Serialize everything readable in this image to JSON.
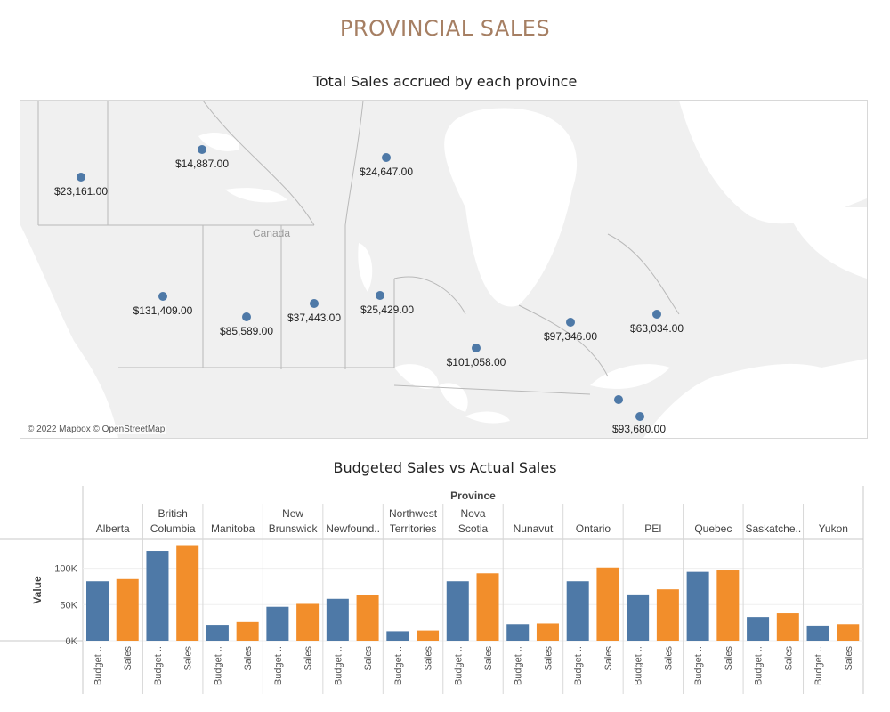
{
  "title": "PROVINCIAL SALES",
  "colors": {
    "title": "#a67f63",
    "budget": "#4e79a7",
    "sales": "#f28e2b",
    "map_dot": "#4e79a7"
  },
  "map": {
    "title": "Total Sales accrued by each province",
    "region_label": "Canada",
    "attribution": "© 2022 Mapbox © OpenStreetMap",
    "points": [
      {
        "label": "$23,161.00"
      },
      {
        "label": "$14,887.00"
      },
      {
        "label": "$24,647.00"
      },
      {
        "label": "$131,409.00"
      },
      {
        "label": "$85,589.00"
      },
      {
        "label": "$37,443.00"
      },
      {
        "label": "$25,429.00"
      },
      {
        "label": "$97,346.00"
      },
      {
        "label": "$63,034.00"
      },
      {
        "label": "$101,058.00"
      },
      {
        "label": "$93,680.00"
      }
    ]
  },
  "chart_data": {
    "type": "bar",
    "title": "Budgeted Sales vs Actual Sales",
    "column_header": "Province",
    "ylabel": "Value",
    "ylim": [
      0,
      140000
    ],
    "yticks": [
      0,
      50000,
      100000
    ],
    "ytick_labels": [
      "0K",
      "50K",
      "100K"
    ],
    "categories": [
      {
        "lines": [
          "Alberta"
        ]
      },
      {
        "lines": [
          "British",
          "Columbia"
        ]
      },
      {
        "lines": [
          "Manitoba"
        ]
      },
      {
        "lines": [
          "New",
          "Brunswick"
        ]
      },
      {
        "lines": [
          "Newfound.."
        ]
      },
      {
        "lines": [
          "Northwest",
          "Territories"
        ]
      },
      {
        "lines": [
          "Nova",
          "Scotia"
        ]
      },
      {
        "lines": [
          "Nunavut"
        ]
      },
      {
        "lines": [
          "Ontario"
        ]
      },
      {
        "lines": [
          "PEI"
        ]
      },
      {
        "lines": [
          "Quebec"
        ]
      },
      {
        "lines": [
          "Saskatche.."
        ]
      },
      {
        "lines": [
          "Yukon"
        ]
      }
    ],
    "bar_labels": [
      "Budget ..",
      "Sales"
    ],
    "series": [
      {
        "name": "Budget ..",
        "color": "#4e79a7",
        "values": [
          82000,
          124000,
          22000,
          47000,
          58000,
          13000,
          82000,
          23000,
          82000,
          64000,
          95000,
          33000,
          21000
        ]
      },
      {
        "name": "Sales",
        "color": "#f28e2b",
        "values": [
          85000,
          132000,
          26000,
          51000,
          63000,
          14000,
          93000,
          24000,
          101000,
          71000,
          97000,
          38000,
          23000
        ]
      }
    ],
    "grid": true
  }
}
